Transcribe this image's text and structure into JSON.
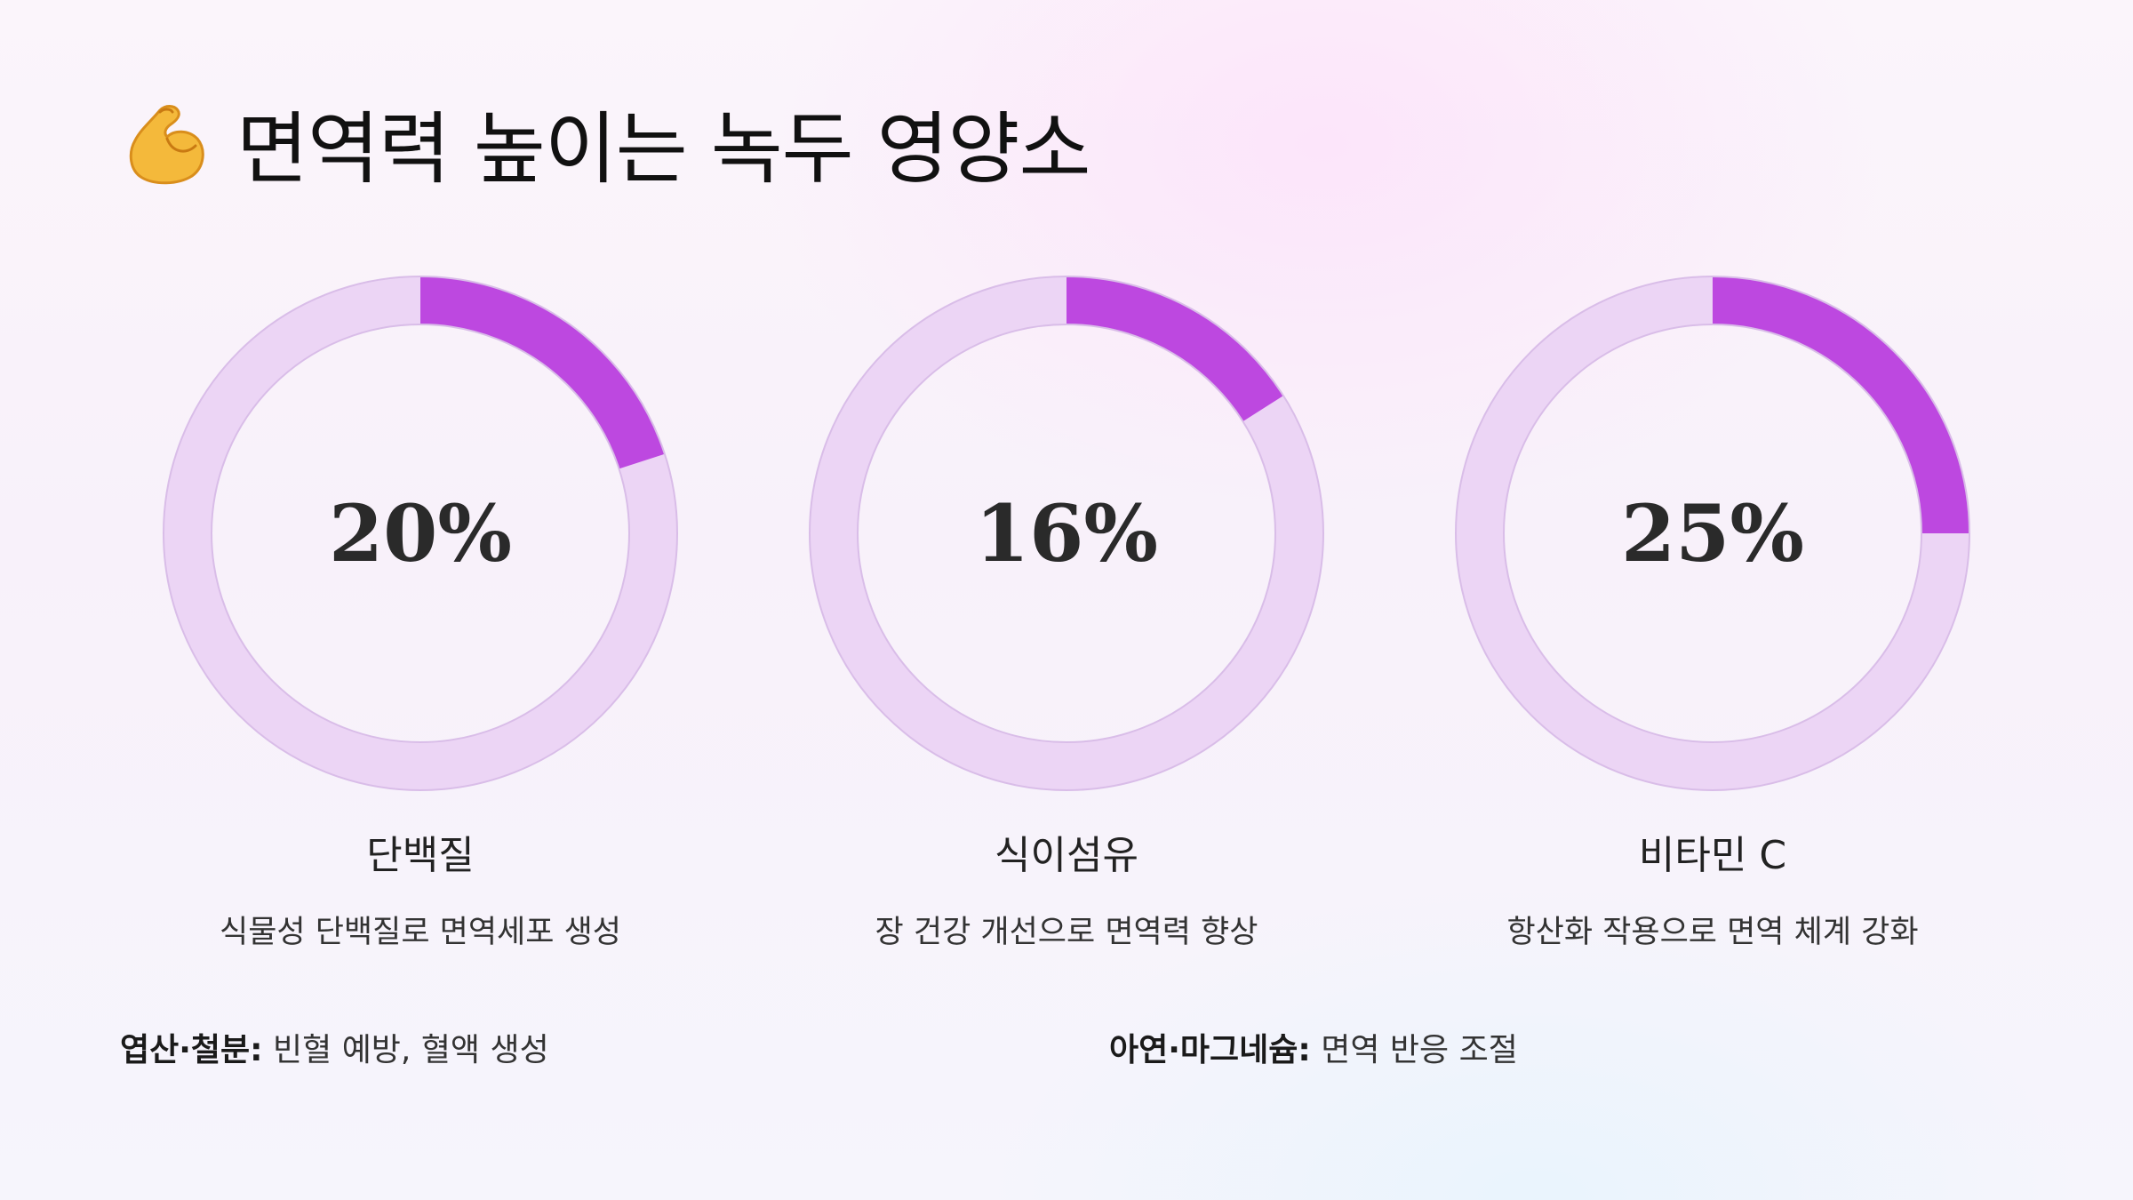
{
  "title": {
    "emoji_icon": "flexed-biceps-icon",
    "text": "면역력 높이는 녹두 영양소"
  },
  "colors": {
    "ring_track": "#ecd5f5",
    "ring_fill": "#bd48e0",
    "ring_stroke": "#d9bde8"
  },
  "chart_data": {
    "type": "pie",
    "categories": [
      "단백질",
      "식이섬유",
      "비타민 C"
    ],
    "values": [
      20,
      16,
      25
    ],
    "value_labels": [
      "20%",
      "16%",
      "25%"
    ],
    "descriptions": [
      "식물성 단백질로 면역세포 생성",
      "장 건강 개선으로 면역력 향상",
      "항산화 작용으로 면역 체계 강화"
    ]
  },
  "footnotes": [
    {
      "label": "엽산·철분:",
      "text": " 빈혈 예방, 혈액 생성"
    },
    {
      "label": "아연·마그네슘:",
      "text": " 면역 반응 조절"
    }
  ]
}
